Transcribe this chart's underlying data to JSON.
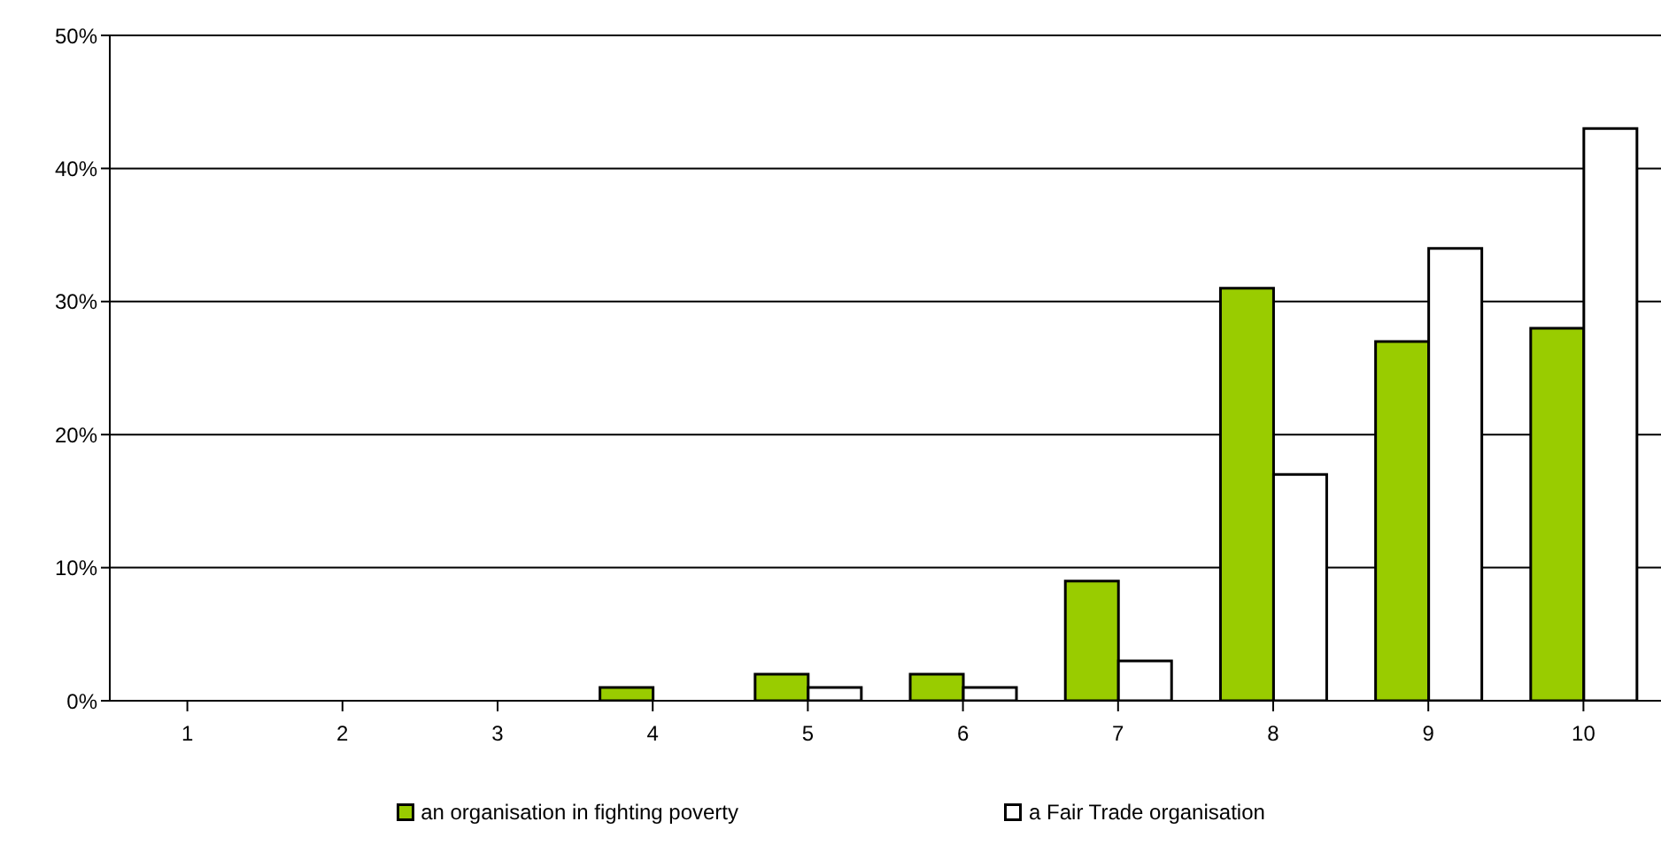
{
  "chart_data": {
    "type": "bar",
    "categories": [
      "1",
      "2",
      "3",
      "4",
      "5",
      "6",
      "7",
      "8",
      "9",
      "10"
    ],
    "series": [
      {
        "name": "an organisation in fighting poverty",
        "color": "#99cc00",
        "values": [
          0,
          0,
          0,
          1,
          2,
          2,
          9,
          31,
          27,
          28
        ]
      },
      {
        "name": "a Fair Trade organisation",
        "color": "#ffffff",
        "values": [
          0,
          0,
          0,
          0,
          1,
          1,
          3,
          17,
          34,
          43
        ]
      }
    ],
    "ylim": [
      0,
      50
    ],
    "yticks": [
      {
        "value": 0,
        "label": "0%"
      },
      {
        "value": 10,
        "label": "10%"
      },
      {
        "value": 20,
        "label": "20%"
      },
      {
        "value": 30,
        "label": "30%"
      },
      {
        "value": 40,
        "label": "40%"
      },
      {
        "value": 50,
        "label": "50%"
      }
    ],
    "grid": "y",
    "legend": "bottom"
  }
}
